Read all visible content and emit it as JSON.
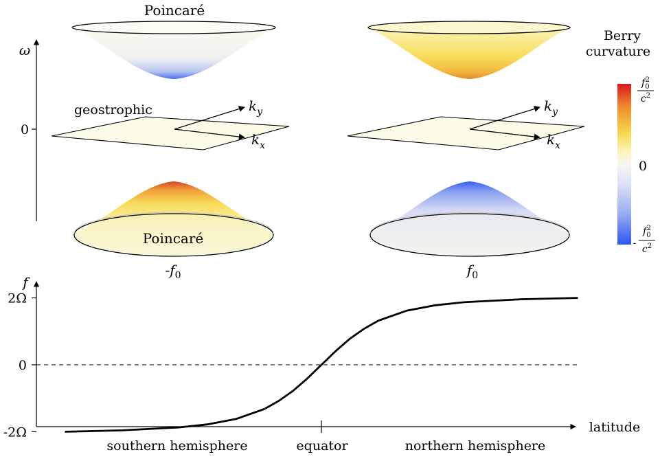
{
  "top_panel": {
    "omega_axis_label": "ω",
    "omega_zero_tick": "0",
    "left_cone": {
      "upper_band_label": "Poincaré",
      "middle_band_label": "geostrophic",
      "lower_band_label": "Poincaré",
      "kx_label": "k",
      "kx_sub": "x",
      "ky_label": "k",
      "ky_sub": "y",
      "f_label_prefix": "-",
      "f_label": "f",
      "f_sub": "0",
      "upper_curvature": "negative",
      "lower_curvature": "positive"
    },
    "right_cone": {
      "kx_label": "k",
      "kx_sub": "x",
      "ky_label": "k",
      "ky_sub": "y",
      "f_label": "f",
      "f_sub": "0",
      "upper_curvature": "positive",
      "lower_curvature": "negative"
    }
  },
  "colorbar": {
    "title_line1": "Berry",
    "title_line2": "curvature",
    "max_num": "f",
    "max_num_sub": "0",
    "max_num_sup": "2",
    "max_den": "c",
    "max_den_sup": "2",
    "mid_label": "0",
    "min_prefix": "-",
    "min_num": "f",
    "min_num_sub": "0",
    "min_num_sup": "2",
    "min_den": "c",
    "min_den_sup": "2",
    "colors": {
      "max": "#d7191c",
      "upper": "#f6c43a",
      "pale": "#ffffe6",
      "mid": "#f7f7f2",
      "lower": "#b5c4f0",
      "min": "#2c55f0"
    }
  },
  "chart_data": {
    "type": "line",
    "ylabel": "f",
    "xlabel": "latitude",
    "yticks": [
      "2Ω",
      "0",
      "-2Ω"
    ],
    "ytick_values": [
      2,
      0,
      -2
    ],
    "ylim": [
      -2.3,
      2.3
    ],
    "xlim": [
      -1,
      1
    ],
    "x_region_labels": [
      "southern hemisphere",
      "equator",
      "northern hemisphere"
    ],
    "series": [
      {
        "x": [
          -0.9,
          -0.7,
          -0.5,
          -0.4,
          -0.3,
          -0.2,
          -0.15,
          -0.1,
          -0.05,
          0,
          0.05,
          0.1,
          0.15,
          0.2,
          0.3,
          0.4,
          0.5,
          0.7,
          0.9
        ],
        "values": [
          -2.0,
          -1.96,
          -1.87,
          -1.78,
          -1.62,
          -1.32,
          -1.08,
          -0.78,
          -0.41,
          0,
          0.41,
          0.78,
          1.08,
          1.32,
          1.62,
          1.78,
          1.87,
          1.96,
          2.0
        ]
      }
    ],
    "reference_line": {
      "y": 0,
      "style": "dashed"
    }
  }
}
